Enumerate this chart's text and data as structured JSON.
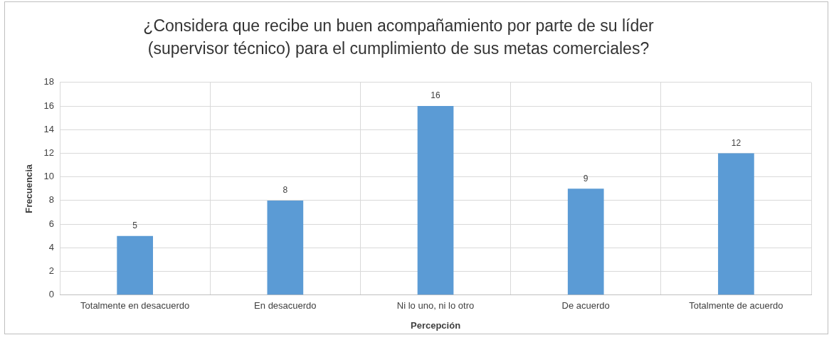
{
  "chart_data": {
    "type": "bar",
    "title": "¿Considera que recibe un buen acompañamiento por parte de su líder (supervisor técnico) para el cumplimiento de sus metas comerciales?",
    "xlabel": "Percepción",
    "ylabel": "Frecuencia",
    "categories": [
      "Totalmente en desacuerdo",
      "En desacuerdo",
      "Ni lo uno, ni lo otro",
      "De acuerdo",
      "Totalmente de acuerdo"
    ],
    "values": [
      5,
      8,
      16,
      9,
      12
    ],
    "color": "#5b9bd5",
    "ylim": [
      0,
      18
    ],
    "yticks": [
      0,
      2,
      4,
      6,
      8,
      10,
      12,
      14,
      16,
      18
    ],
    "grid": true,
    "data_labels": true
  }
}
